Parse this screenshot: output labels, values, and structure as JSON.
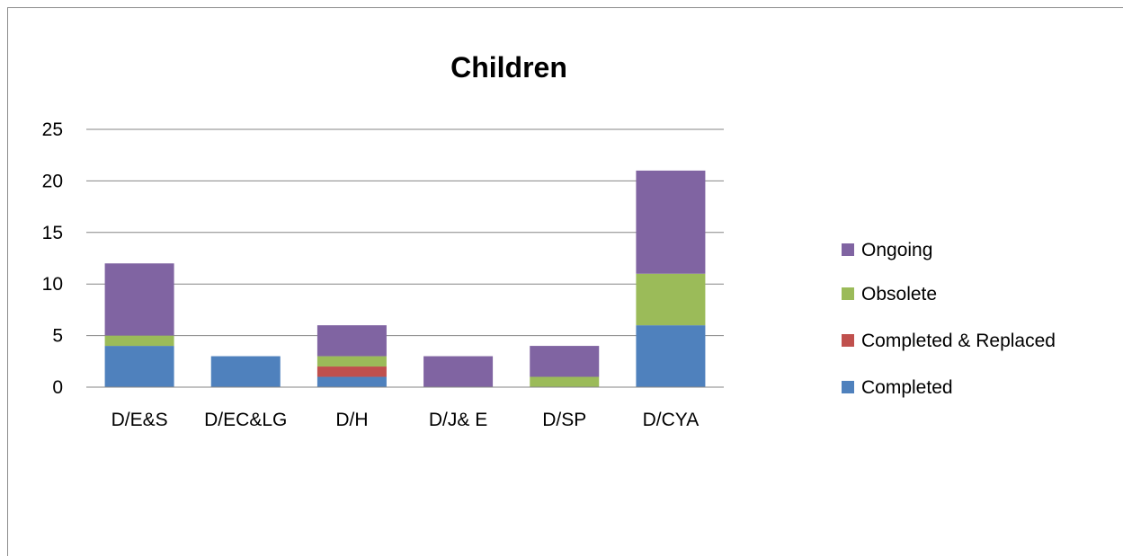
{
  "chart_data": {
    "type": "bar",
    "stacked": true,
    "title": "Children",
    "xlabel": "",
    "ylabel": "",
    "categories": [
      "D/E&S",
      "D/EC&LG",
      "D/H",
      "D/J& E",
      "D/SP",
      "D/CYA"
    ],
    "series": [
      {
        "name": "Completed",
        "color": "#4f81bd",
        "values": [
          4,
          3,
          1,
          0,
          0,
          6
        ]
      },
      {
        "name": "Completed & Replaced",
        "color": "#c0504d",
        "values": [
          0,
          0,
          1,
          0,
          0,
          0
        ]
      },
      {
        "name": "Obsolete",
        "color": "#9bbb59",
        "values": [
          1,
          0,
          1,
          0,
          1,
          5
        ]
      },
      {
        "name": "Ongoing",
        "color": "#8064a2",
        "values": [
          7,
          0,
          3,
          3,
          3,
          10
        ]
      }
    ],
    "ylim": [
      0,
      25
    ],
    "yticks": [
      0,
      5,
      10,
      15,
      20,
      25
    ],
    "grid": true,
    "legend_position": "right",
    "legend_order": [
      "Ongoing",
      "Obsolete",
      "Completed & Replaced",
      "Completed"
    ]
  }
}
